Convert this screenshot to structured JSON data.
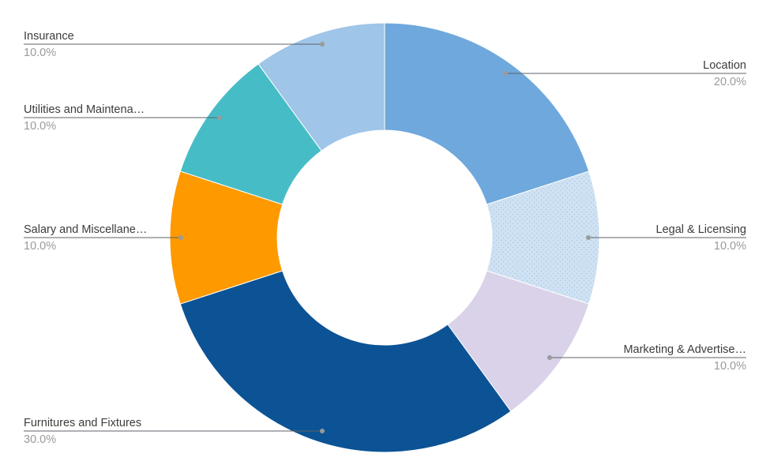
{
  "chart_data": {
    "type": "pie",
    "donut": true,
    "legend": "none",
    "slices": [
      {
        "label": "Location",
        "value": 20.0,
        "percent_label": "20.0%",
        "color": "#6fa8dc",
        "pattern": "none"
      },
      {
        "label": "Legal & Licensing",
        "value": 10.0,
        "percent_label": "10.0%",
        "color": "#cfe2f3",
        "pattern": "dots"
      },
      {
        "label": "Marketing & Advertise…",
        "value": 10.0,
        "percent_label": "10.0%",
        "color": "#d9d2e9",
        "pattern": "none"
      },
      {
        "label": "Furnitures and Fixtures",
        "value": 30.0,
        "percent_label": "30.0%",
        "color": "#0b5394",
        "pattern": "none"
      },
      {
        "label": "Salary and Miscellane…",
        "value": 10.0,
        "percent_label": "10.0%",
        "color": "#ff9900",
        "pattern": "none"
      },
      {
        "label": "Utilities and Maintena…",
        "value": 10.0,
        "percent_label": "10.0%",
        "color": "#46bdc6",
        "pattern": "none"
      },
      {
        "label": "Insurance",
        "value": 10.0,
        "percent_label": "10.0%",
        "color": "#9fc5e8",
        "pattern": "none"
      }
    ]
  }
}
